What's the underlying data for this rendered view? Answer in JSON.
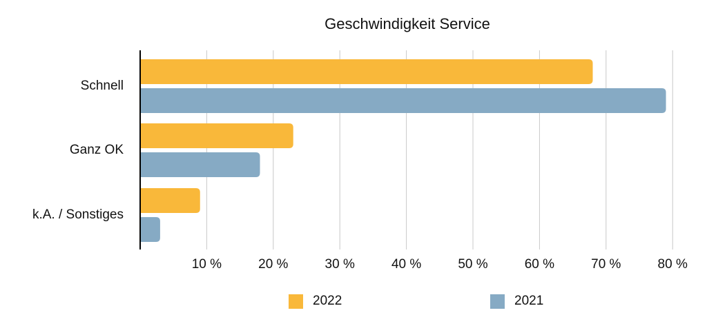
{
  "chart_data": {
    "type": "bar",
    "orientation": "horizontal",
    "title": "Geschwindigkeit Service",
    "categories": [
      "Schnell",
      "Ganz OK",
      "k.A. / Sonstiges"
    ],
    "series": [
      {
        "name": "2022",
        "color": "#F9B83A",
        "values": [
          68,
          23,
          9
        ]
      },
      {
        "name": "2021",
        "color": "#86AAC4",
        "values": [
          79,
          18,
          3
        ]
      }
    ],
    "xlim": [
      0,
      80
    ],
    "x_ticks": [
      10,
      20,
      30,
      40,
      50,
      60,
      70,
      80
    ],
    "x_tick_labels": [
      "10 %",
      "20 %",
      "30 %",
      "40 %",
      "50 %",
      "60 %",
      "70 %",
      "80 %"
    ],
    "xlabel": "",
    "ylabel": "",
    "grid": "vertical",
    "legend": "bottom"
  }
}
